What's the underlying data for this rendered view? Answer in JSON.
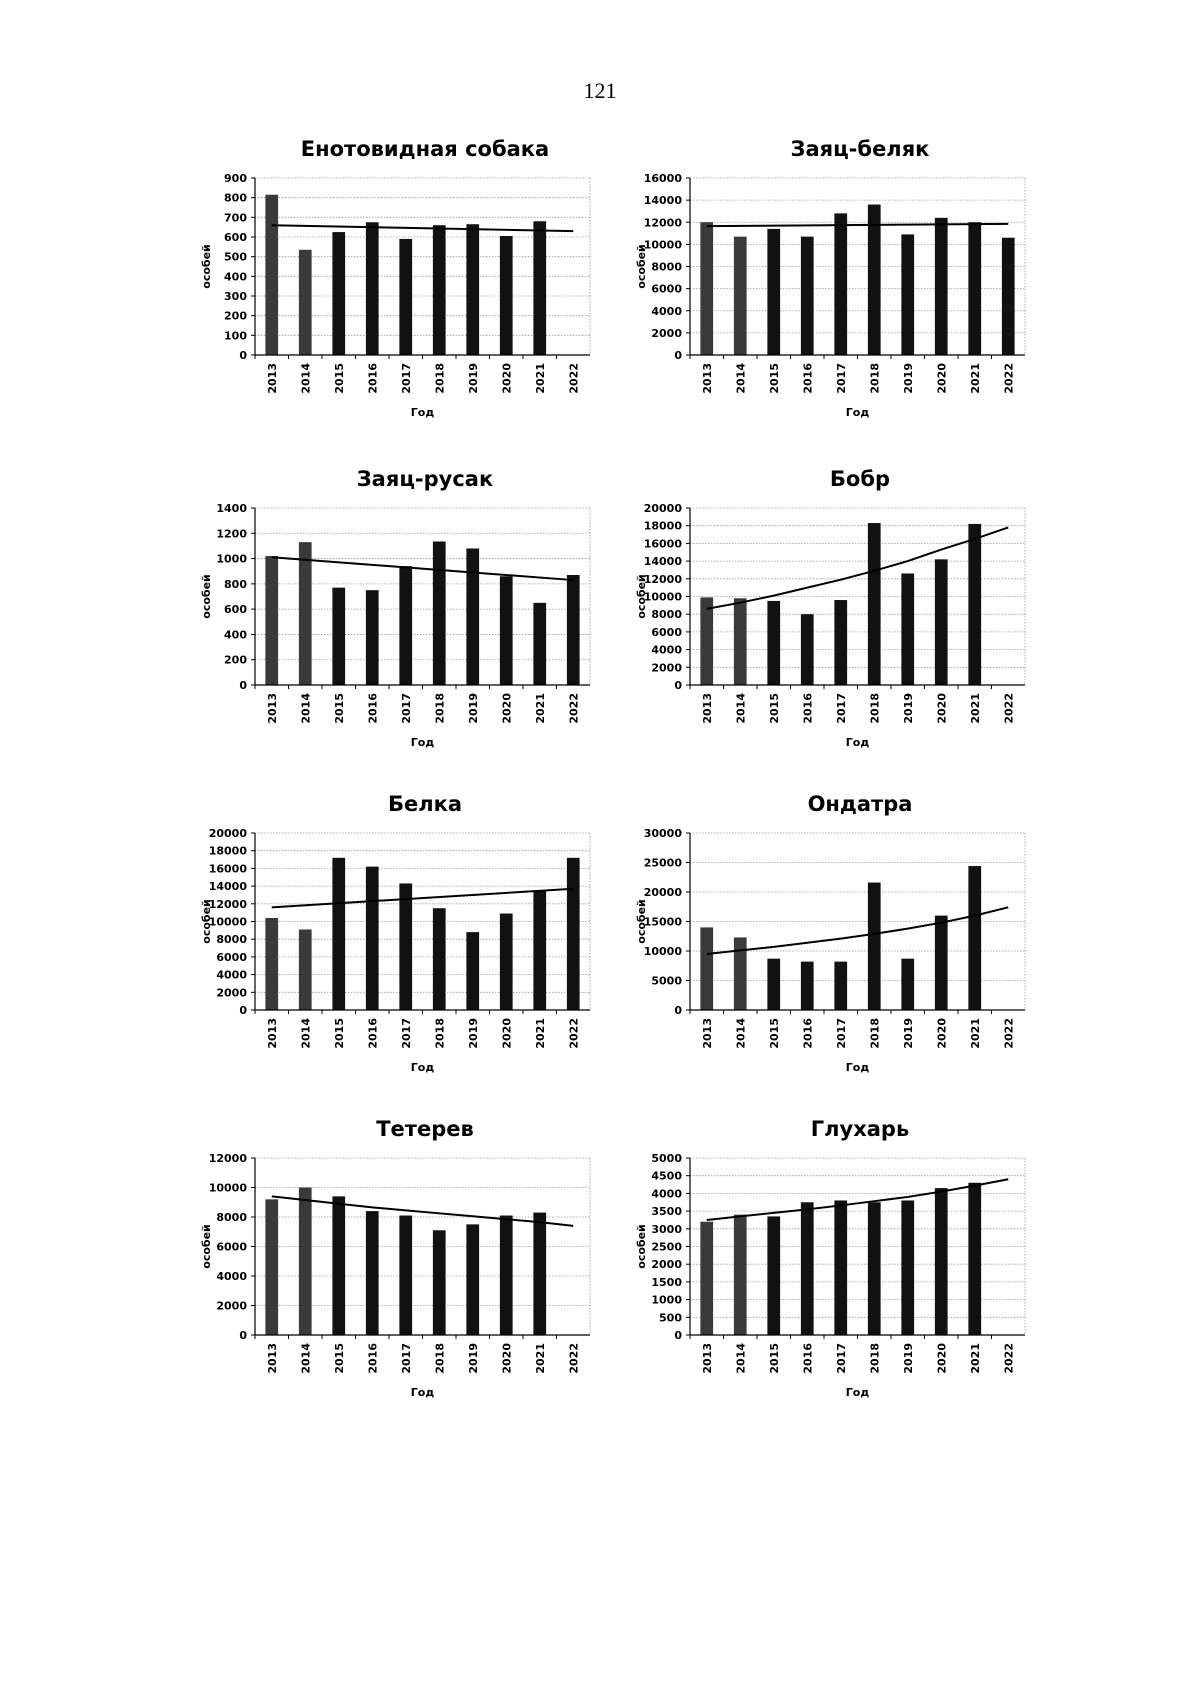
{
  "page_number": "121",
  "chart_data": [
    {
      "type": "bar",
      "title": "Енотовидная собака",
      "xlabel": "Год",
      "ylabel": "особей",
      "categories": [
        "2013",
        "2014",
        "2015",
        "2016",
        "2017",
        "2018",
        "2019",
        "2020",
        "2021",
        "2022"
      ],
      "values": [
        815,
        535,
        625,
        675,
        590,
        660,
        665,
        605,
        680,
        null
      ],
      "ylim": [
        0,
        900
      ],
      "yticks": [
        0,
        100,
        200,
        300,
        400,
        500,
        600,
        700,
        800,
        900
      ],
      "ytick_labels": [
        "0",
        "100",
        "200",
        "300",
        "400",
        "500",
        "600",
        "700",
        "800",
        "900"
      ],
      "trend": [
        660,
        630
      ],
      "trend_span": [
        0,
        9
      ],
      "grid": true
    },
    {
      "type": "bar",
      "title": "Заяц-беляк",
      "xlabel": "Год",
      "ylabel": "особей",
      "categories": [
        "2013",
        "2014",
        "2015",
        "2016",
        "2017",
        "2018",
        "2019",
        "2020",
        "2021",
        "2022"
      ],
      "values": [
        12000,
        10700,
        11400,
        10700,
        12800,
        13600,
        10900,
        12400,
        12000,
        10600
      ],
      "ylim": [
        0,
        16000
      ],
      "yticks": [
        0,
        2000,
        4000,
        6000,
        8000,
        10000,
        12000,
        14000,
        16000
      ],
      "ytick_labels": [
        "0",
        "2000",
        "4000",
        "6000",
        "8000",
        "10000",
        "12000",
        "14000",
        "16000"
      ],
      "trend": [
        11650,
        11850
      ],
      "trend_span": [
        0,
        9
      ],
      "grid": true
    },
    {
      "type": "bar",
      "title": "Заяц-русак",
      "xlabel": "Год",
      "ylabel": "особей",
      "categories": [
        "2013",
        "2014",
        "2015",
        "2016",
        "2017",
        "2018",
        "2019",
        "2020",
        "2021",
        "2022"
      ],
      "values": [
        1020,
        1130,
        770,
        750,
        940,
        1135,
        1080,
        860,
        650,
        870
      ],
      "ylim": [
        0,
        1400
      ],
      "yticks": [
        0,
        200,
        400,
        600,
        800,
        1000,
        1200,
        1400
      ],
      "ytick_labels": [
        "0",
        "200",
        "400",
        "600",
        "800",
        "1000",
        "1200",
        "1400"
      ],
      "trend": [
        1010,
        830
      ],
      "trend_span": [
        0,
        9
      ],
      "grid": true
    },
    {
      "type": "bar",
      "title": "Бобр",
      "xlabel": "Год",
      "ylabel": "особей",
      "categories": [
        "2013",
        "2014",
        "2015",
        "2016",
        "2017",
        "2018",
        "2019",
        "2020",
        "2021",
        "2022"
      ],
      "values": [
        9900,
        9800,
        9500,
        8000,
        9600,
        18300,
        12600,
        14200,
        18200,
        null
      ],
      "ylim": [
        0,
        20000
      ],
      "yticks": [
        0,
        2000,
        4000,
        6000,
        8000,
        10000,
        12000,
        14000,
        16000,
        18000,
        20000
      ],
      "ytick_labels": [
        "0",
        "2000",
        "4000",
        "6000",
        "8000",
        "10000",
        "12000",
        "14000",
        "16000",
        "18000",
        "20000"
      ],
      "trend": [
        8600,
        9300,
        10100,
        11000,
        11900,
        12900,
        14000,
        15300,
        16500,
        17800
      ],
      "trend_span": [
        0,
        9
      ],
      "grid": true
    },
    {
      "type": "bar",
      "title": "Белка",
      "xlabel": "Год",
      "ylabel": "особей",
      "categories": [
        "2013",
        "2014",
        "2015",
        "2016",
        "2017",
        "2018",
        "2019",
        "2020",
        "2021",
        "2022"
      ],
      "values": [
        10400,
        9100,
        17200,
        16200,
        14300,
        11500,
        8800,
        10900,
        13400,
        17200
      ],
      "ylim": [
        0,
        20000
      ],
      "yticks": [
        0,
        2000,
        4000,
        6000,
        8000,
        10000,
        12000,
        14000,
        16000,
        18000,
        20000
      ],
      "ytick_labels": [
        "0",
        "2000",
        "4000",
        "6000",
        "8000",
        "10000",
        "12000",
        "14000",
        "16000",
        "18000",
        "20000"
      ],
      "trend": [
        11600,
        13700
      ],
      "trend_span": [
        0,
        9
      ],
      "grid": true
    },
    {
      "type": "bar",
      "title": "Ондатра",
      "xlabel": "Год",
      "ylabel": "особей",
      "categories": [
        "2013",
        "2014",
        "2015",
        "2016",
        "2017",
        "2018",
        "2019",
        "2020",
        "2021",
        "2022"
      ],
      "values": [
        14000,
        12300,
        8700,
        8200,
        8200,
        21600,
        8700,
        16000,
        24400,
        null
      ],
      "ylim": [
        0,
        30000
      ],
      "yticks": [
        0,
        5000,
        10000,
        15000,
        20000,
        25000,
        30000
      ],
      "ytick_labels": [
        "0",
        "5000",
        "10000",
        "15000",
        "20000",
        "25000",
        "30000"
      ],
      "trend": [
        9500,
        10100,
        10700,
        11400,
        12100,
        12900,
        13800,
        14800,
        16000,
        17400
      ],
      "trend_span": [
        0,
        9
      ],
      "grid": true
    },
    {
      "type": "bar",
      "title": "Тетерев",
      "xlabel": "Год",
      "ylabel": "особей",
      "categories": [
        "2013",
        "2014",
        "2015",
        "2016",
        "2017",
        "2018",
        "2019",
        "2020",
        "2021",
        "2022"
      ],
      "values": [
        9200,
        10000,
        9400,
        8400,
        8100,
        7100,
        7500,
        8100,
        8300,
        null
      ],
      "ylim": [
        0,
        12000
      ],
      "yticks": [
        0,
        2000,
        4000,
        6000,
        8000,
        10000,
        12000
      ],
      "ytick_labels": [
        "0",
        "2000",
        "4000",
        "6000",
        "8000",
        "10000",
        "12000"
      ],
      "trend": [
        9400,
        9150,
        8900,
        8650,
        8450,
        8250,
        8050,
        7850,
        7650,
        7400
      ],
      "trend_span": [
        0,
        9
      ],
      "grid": true
    },
    {
      "type": "bar",
      "title": "Глухарь",
      "xlabel": "Год",
      "ylabel": "особей",
      "categories": [
        "2013",
        "2014",
        "2015",
        "2016",
        "2017",
        "2018",
        "2019",
        "2020",
        "2021",
        "2022"
      ],
      "values": [
        3200,
        3400,
        3350,
        3750,
        3800,
        3750,
        3800,
        4150,
        4300,
        null
      ],
      "ylim": [
        0,
        5000
      ],
      "yticks": [
        0,
        500,
        1000,
        1500,
        2000,
        2500,
        3000,
        3500,
        4000,
        4500,
        5000
      ],
      "ytick_labels": [
        "0",
        "500",
        "1000",
        "1500",
        "2000",
        "2500",
        "3000",
        "3500",
        "4000",
        "4500",
        "5000"
      ],
      "trend": [
        3250,
        3350,
        3450,
        3550,
        3660,
        3780,
        3900,
        4050,
        4220,
        4400
      ],
      "trend_span": [
        0,
        9
      ],
      "grid": true
    }
  ]
}
